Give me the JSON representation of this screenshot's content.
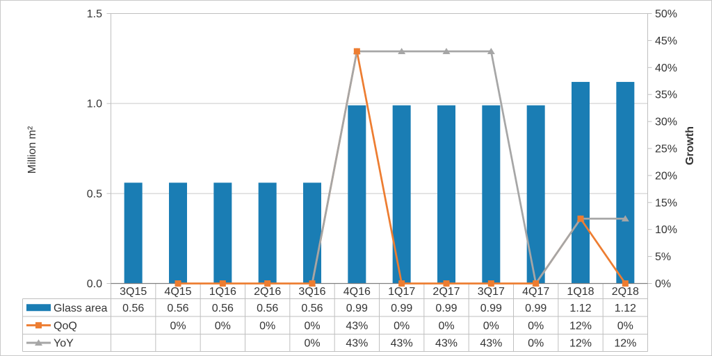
{
  "chart_data": {
    "type": "combo-bar-line",
    "title": "",
    "categories": [
      "3Q15",
      "4Q15",
      "1Q16",
      "2Q16",
      "3Q16",
      "4Q16",
      "1Q17",
      "2Q17",
      "3Q17",
      "4Q17",
      "1Q18",
      "2Q18"
    ],
    "series": [
      {
        "name": "Glass area",
        "chart_type": "bar",
        "axis": "left",
        "color": "#1A7DB4",
        "values": [
          0.56,
          0.56,
          0.56,
          0.56,
          0.56,
          0.99,
          0.99,
          0.99,
          0.99,
          0.99,
          1.12,
          1.12
        ],
        "table": [
          "0.56",
          "0.56",
          "0.56",
          "0.56",
          "0.56",
          "0.99",
          "0.99",
          "0.99",
          "0.99",
          "0.99",
          "1.12",
          "1.12"
        ]
      },
      {
        "name": "QoQ",
        "chart_type": "line",
        "marker": "square",
        "axis": "right",
        "color": "#ED7D31",
        "values": [
          null,
          0,
          0,
          0,
          0,
          43,
          0,
          0,
          0,
          0,
          12,
          0
        ],
        "table": [
          "",
          "0%",
          "0%",
          "0%",
          "0%",
          "43%",
          "0%",
          "0%",
          "0%",
          "0%",
          "12%",
          "0%"
        ]
      },
      {
        "name": "YoY",
        "chart_type": "line",
        "marker": "triangle",
        "axis": "right",
        "color": "#A6A6A6",
        "values": [
          null,
          null,
          null,
          null,
          0,
          43,
          43,
          43,
          43,
          0,
          12,
          12
        ],
        "table": [
          "",
          "",
          "",
          "",
          "0%",
          "43%",
          "43%",
          "43%",
          "43%",
          "0%",
          "12%",
          "12%"
        ]
      }
    ],
    "left_axis": {
      "title": "Million m²",
      "min": 0,
      "max": 1.5,
      "ticks": [
        0,
        0.5,
        1,
        1.5
      ],
      "tick_labels": [
        "0.0",
        "0.5",
        "1.0",
        "1.5"
      ]
    },
    "right_axis": {
      "title": "Growth",
      "min": 0,
      "max": 50,
      "tick_step": 5,
      "tick_labels": [
        "0%",
        "5%",
        "10%",
        "15%",
        "20%",
        "25%",
        "30%",
        "35%",
        "40%",
        "45%",
        "50%"
      ]
    },
    "grid": true,
    "legend_position": "data-table-left",
    "data_table": true
  },
  "colors": {
    "background": "#FFFFFF",
    "grid": "#C9C9C9",
    "plot_border": "#BFBFBF",
    "axis_line": "#7F7F7F",
    "table_border": "#BFBFBF",
    "text": "#333333",
    "frame": "#C9C9C9"
  }
}
